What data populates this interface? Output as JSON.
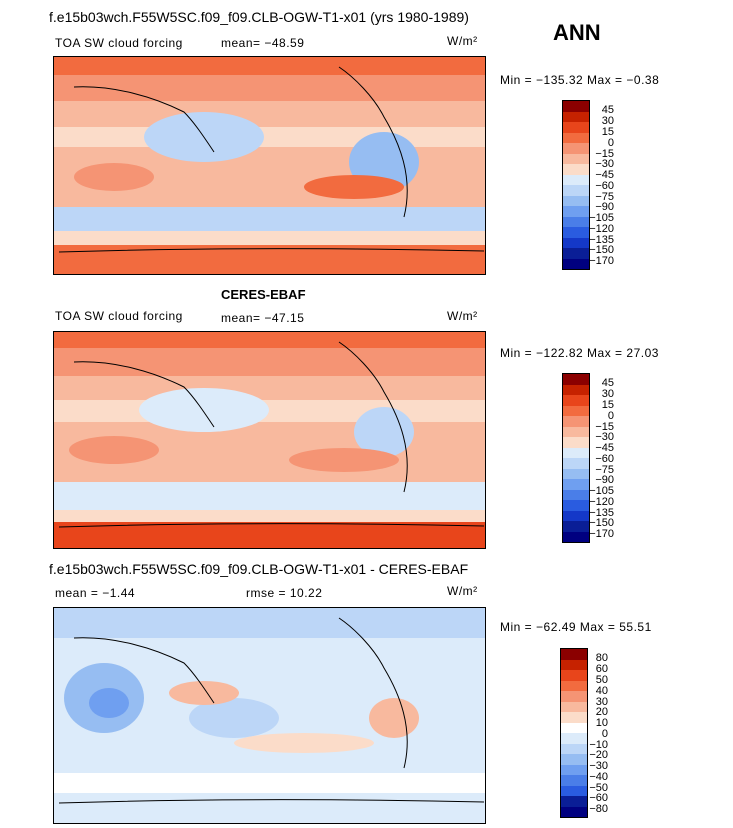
{
  "header": {
    "title": "f.e15b03wch.F55W5SC.f09_f09.CLB-OGW-T1-x01 (yrs 1980-1989)",
    "season": "ANN"
  },
  "panels": [
    {
      "variable": "TOA SW cloud forcing",
      "mean": "mean= −48.59",
      "units": "W/m²",
      "minmax": "Min = −135.32 Max =  −0.38",
      "colorbar_labels": [
        "45",
        "30",
        "15",
        "0",
        "−15",
        "−30",
        "−45",
        "−60",
        "−75",
        "−90",
        "−105",
        "−120",
        "−135",
        "−150",
        "−170"
      ]
    },
    {
      "subtitle": "CERES-EBAF",
      "variable": "TOA SW cloud forcing",
      "mean": "mean= −47.15",
      "units": "W/m²",
      "minmax": "Min = −122.82 Max =  27.03",
      "colorbar_labels": [
        "45",
        "30",
        "15",
        "0",
        "−15",
        "−30",
        "−45",
        "−60",
        "−75",
        "−90",
        "−105",
        "−120",
        "−135",
        "−150",
        "−170"
      ]
    },
    {
      "subtitle": "f.e15b03wch.F55W5SC.f09_f09.CLB-OGW-T1-x01 - CERES-EBAF",
      "mean": "mean =  −1.44",
      "rmse": "rmse =  10.22",
      "units": "W/m²",
      "minmax": "Min = −62.49 Max =  55.51",
      "colorbar_labels": [
        "80",
        "60",
        "50",
        "40",
        "30",
        "20",
        "10",
        "0",
        "−10",
        "−20",
        "−30",
        "−40",
        "−50",
        "−60",
        "−80"
      ]
    }
  ],
  "colors": {
    "cbar_1_2": [
      "#8b0000",
      "#c62200",
      "#e8451b",
      "#f26b3f",
      "#f59474",
      "#f8b99e",
      "#fbdcc9",
      "#dcebfa",
      "#bcd6f7",
      "#96bdf2",
      "#6f9ff0",
      "#4a7ee8",
      "#2a5ce0",
      "#1438c8",
      "#0a1e96",
      "#000080"
    ],
    "cbar_3": [
      "#8b0000",
      "#c62200",
      "#e8451b",
      "#f26b3f",
      "#f59474",
      "#f8b99e",
      "#fbdcc9",
      "#ffffff",
      "#dcebfa",
      "#bcd6f7",
      "#96bdf2",
      "#6f9ff0",
      "#4a7ee8",
      "#2a5ce0",
      "#0a1e96",
      "#000080"
    ]
  }
}
